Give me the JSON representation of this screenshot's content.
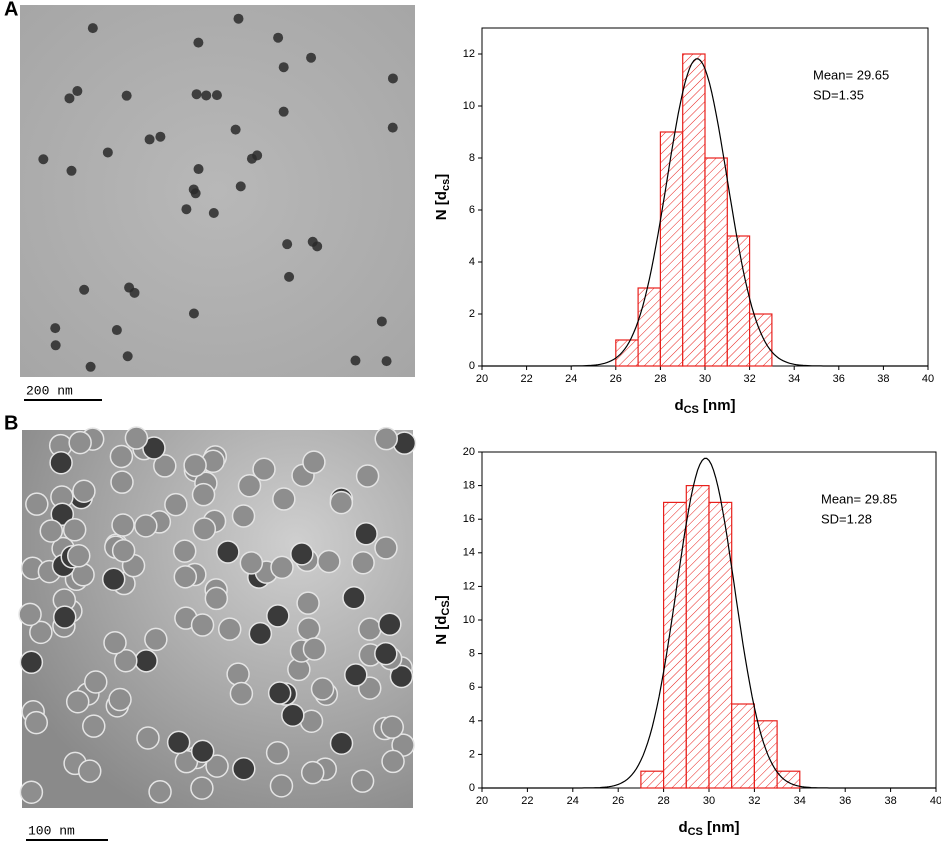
{
  "panels": [
    {
      "label": "A",
      "scale_bar": "200 nm"
    },
    {
      "label": "B",
      "scale_bar": "100 nm"
    }
  ],
  "chart_data": [
    {
      "type": "histogram",
      "bins": [
        26,
        27,
        28,
        29,
        30,
        31,
        32,
        33
      ],
      "values": [
        1,
        3,
        9,
        12,
        8,
        5,
        2
      ],
      "color": "#e8201c",
      "xlim": [
        20,
        40
      ],
      "xticks": [
        20,
        22,
        24,
        26,
        28,
        30,
        32,
        34,
        36,
        38,
        40
      ],
      "ylim": [
        0,
        13
      ],
      "yticks": [
        0,
        2,
        4,
        6,
        8,
        10,
        12
      ],
      "x_label": [
        "d",
        "CS",
        " [nm]"
      ],
      "y_label": [
        "N [d",
        "cs",
        "]"
      ],
      "fit": {
        "mean": {
          "value": 29.65,
          "label": "Mean= 29.65"
        },
        "sd": {
          "value": 1.35,
          "label": "SD=1.35"
        }
      }
    },
    {
      "type": "histogram",
      "bins": [
        27,
        28,
        29,
        30,
        31,
        32,
        33,
        34
      ],
      "values": [
        1,
        17,
        18,
        17,
        5,
        4,
        1
      ],
      "color": "#e8201c",
      "xlim": [
        20,
        40
      ],
      "xticks": [
        20,
        22,
        24,
        26,
        28,
        30,
        32,
        34,
        36,
        38,
        40
      ],
      "ylim": [
        0,
        20
      ],
      "yticks": [
        0,
        2,
        4,
        6,
        8,
        10,
        12,
        14,
        16,
        18,
        20
      ],
      "x_label": [
        "d",
        "CS",
        " [nm]"
      ],
      "y_label": [
        "N [d",
        "CS",
        "]"
      ],
      "fit": {
        "mean": {
          "value": 29.85,
          "label": "Mean= 29.85"
        },
        "sd": {
          "value": 1.28,
          "label": "SD=1.28"
        }
      }
    }
  ]
}
